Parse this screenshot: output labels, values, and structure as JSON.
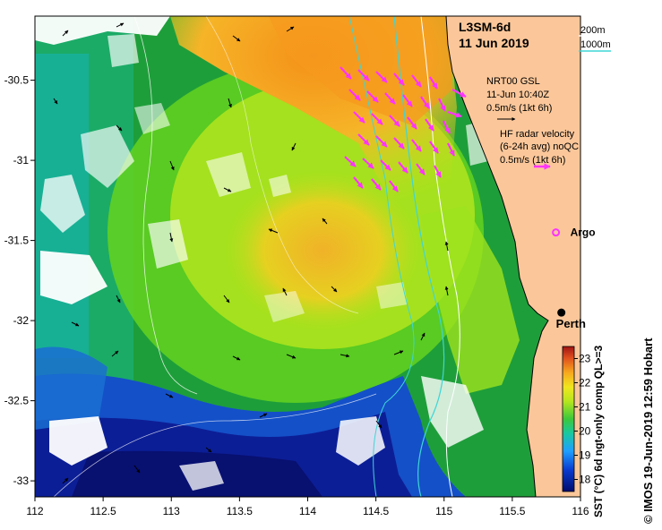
{
  "title": {
    "product": "L3SM-6d",
    "date": "11 Jun 2019"
  },
  "isobath_legend": {
    "items": [
      {
        "label": "200m",
        "color": "#ffffff"
      },
      {
        "label": "1000m",
        "color": "#3fd6d6"
      }
    ]
  },
  "vector_legend": {
    "gsl_title": "NRT00 GSL",
    "gsl_time": "11-Jun 10:40Z",
    "gsl_scale": "0.5m/s (1kt 6h)",
    "gsl_color": "#000000",
    "hf_title": "HF radar velocity",
    "hf_subtitle": "(6-24h avg) noQC",
    "hf_scale": "0.5m/s (1kt 6h)",
    "hf_color": "#ff33ff"
  },
  "markers": {
    "argo_label": "Argo",
    "argo_color": "#ff33ff",
    "city_label": "Perth",
    "city_lon": 115.86,
    "city_lat": -31.95,
    "argo_lon": 115.82,
    "argo_lat": -31.45
  },
  "axes": {
    "x_ticks": [
      "112",
      "112.5",
      "113",
      "113.5",
      "114",
      "114.5",
      "115",
      "115.5",
      "116"
    ],
    "x_values": [
      112,
      112.5,
      113,
      113.5,
      114,
      114.5,
      115,
      115.5,
      116
    ],
    "y_ticks": [
      "-30.5",
      "-31",
      "-31.5",
      "-32",
      "-32.5",
      "-33"
    ],
    "y_values": [
      -30.5,
      -31,
      -31.5,
      -32,
      -32.5,
      -33
    ],
    "lon_range": [
      112,
      116
    ],
    "lat_range": [
      -33.1,
      -30.1
    ]
  },
  "colorbar": {
    "label": "SST (°C) 6d ngt-only comp QL>=3",
    "ticks": [
      "18",
      "19",
      "20",
      "21",
      "22",
      "23"
    ],
    "tick_values": [
      18,
      19,
      20,
      21,
      22,
      23
    ],
    "range": [
      17.5,
      23.5
    ]
  },
  "credit": "© IMOS 19-Jun-2019 12:59 Hobart",
  "colors": {
    "land": "#fbc79a",
    "warm": "#f79a1e",
    "mid": "#9ee51a",
    "cool": "#1ea03a",
    "cold": "#0a1a8a"
  }
}
